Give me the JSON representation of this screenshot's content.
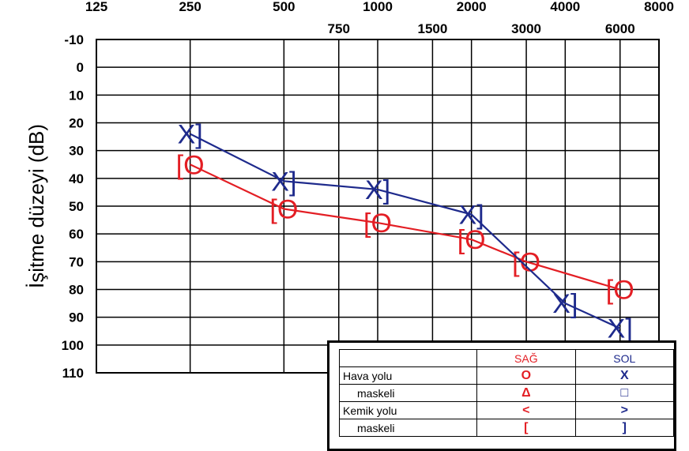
{
  "chart_data": {
    "type": "line",
    "ylabel": "İşitme düzeyi (dB)",
    "x_major_ticks": [
      "125",
      "250",
      "500",
      "1000",
      "2000",
      "4000",
      "8000"
    ],
    "x_minor_ticks": [
      "750",
      "1500",
      "3000",
      "6000"
    ],
    "y_ticks": [
      "-10",
      "0",
      "10",
      "20",
      "30",
      "40",
      "50",
      "60",
      "70",
      "80",
      "90",
      "100",
      "110"
    ],
    "ylim": [
      -10,
      110
    ],
    "y_inverted": true,
    "x_scale": "log",
    "series": [
      {
        "name": "SAĞ",
        "color": "#e31e24",
        "symbol": "[O",
        "x": [
          250,
          500,
          1000,
          2000,
          3000,
          6000
        ],
        "y": [
          35,
          51,
          56,
          62,
          70,
          80
        ]
      },
      {
        "name": "SOL",
        "color": "#1e2a8c",
        "symbol": "X]",
        "x": [
          250,
          500,
          1000,
          2000,
          4000,
          6000
        ],
        "y": [
          24,
          41,
          44,
          53,
          85,
          94
        ]
      }
    ]
  },
  "legend": {
    "header_right": "SAĞ",
    "header_left": "SOL",
    "rows": [
      {
        "label": "Hava yolu",
        "right": "O",
        "left": "X"
      },
      {
        "label": "maskeli",
        "right": "Δ",
        "left": "□"
      },
      {
        "label": "Kemik yolu",
        "right": "<",
        "left": ">"
      },
      {
        "label": "maskeli",
        "right": "[",
        "left": "]"
      }
    ]
  },
  "colors": {
    "right": "#e31e24",
    "left": "#1e2a8c",
    "grid": "#000000"
  }
}
